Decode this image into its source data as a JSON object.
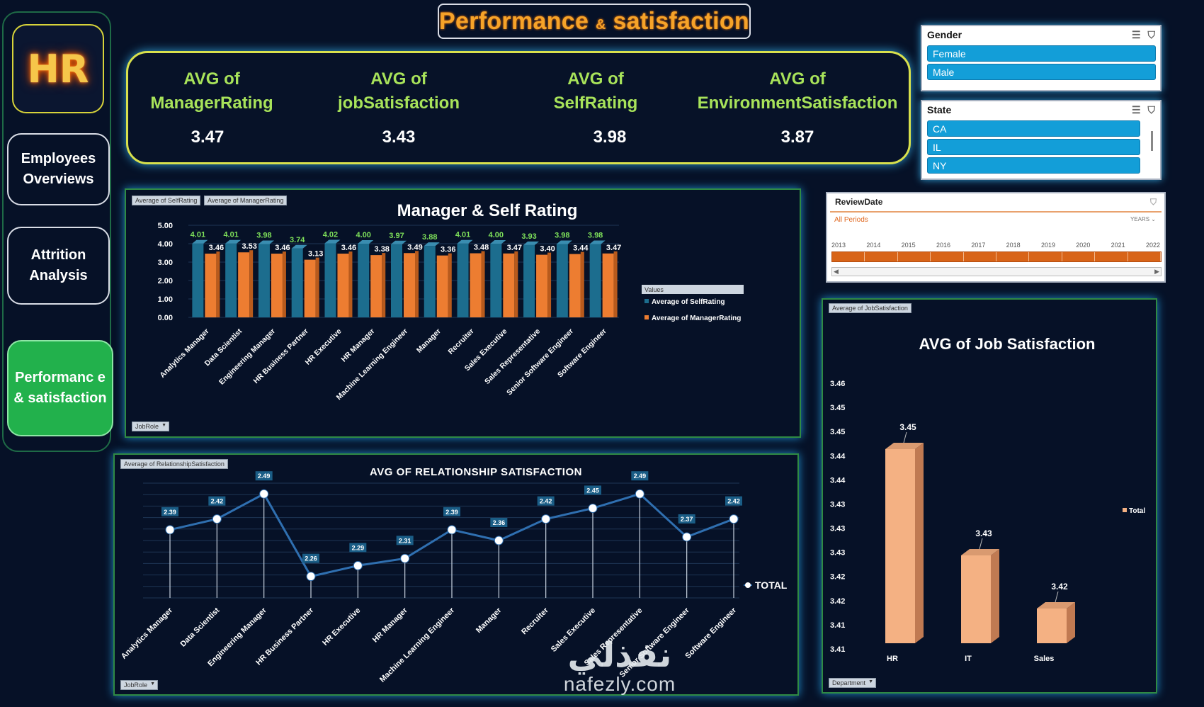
{
  "sidebar": {
    "logo": "HR",
    "nav": [
      "Employees Overviews",
      "Attrition Analysis",
      "Performanc e & satisfaction"
    ]
  },
  "title": {
    "main": "Performance",
    "amp": "&",
    "rest": "satisfaction"
  },
  "kpis": [
    {
      "l1": "AVG of",
      "l2": "ManagerRating",
      "value": "3.47"
    },
    {
      "l1": "AVG of",
      "l2": "jobSatisfaction",
      "value": "3.43"
    },
    {
      "l1": "AVG of",
      "l2": "SelfRating",
      "value": "3.98"
    },
    {
      "l1": "AVG of",
      "l2": "EnvironmentSatisfaction",
      "value": "3.87"
    }
  ],
  "slicers": {
    "gender": {
      "title": "Gender",
      "items": [
        "Female",
        "Male"
      ]
    },
    "state": {
      "title": "State",
      "items": [
        "CA",
        "IL",
        "NY"
      ]
    }
  },
  "timeline": {
    "title": "ReviewDate",
    "period": "All Periods",
    "level": "YEARS",
    "years": [
      "2013",
      "2014",
      "2015",
      "2016",
      "2017",
      "2018",
      "2019",
      "2020",
      "2021",
      "2022"
    ]
  },
  "colors": {
    "self": "#1c6d8e",
    "manager": "#ed7d31",
    "job": "#f4b183",
    "line": "#2f6fb0"
  },
  "chart_data": [
    {
      "type": "bar",
      "title": "Manager &  Self Rating",
      "field_chips": [
        "Average of SelfRating",
        "Average of ManagerRating"
      ],
      "axis_chip": "JobRole",
      "legend_title": "Values",
      "legend_position": "right",
      "categories": [
        "Analytics Manager",
        "Data Scientist",
        "Engineering Manager",
        "HR Business Partner",
        "HR Executive",
        "HR Manager",
        "Machine Learning Engineer",
        "Manager",
        "Recruiter",
        "Sales Executive",
        "Sales Representative",
        "Senior Software Engineer",
        "Software Engineer"
      ],
      "series": [
        {
          "name": "Average of SelfRating",
          "values": [
            4.01,
            4.01,
            3.98,
            3.74,
            4.02,
            4.0,
            3.97,
            3.88,
            4.01,
            4.0,
            3.93,
            3.98,
            3.98
          ]
        },
        {
          "name": "Average of ManagerRating",
          "values": [
            3.46,
            3.53,
            3.46,
            3.13,
            3.46,
            3.38,
            3.49,
            3.36,
            3.48,
            3.47,
            3.4,
            3.44,
            3.47
          ]
        }
      ],
      "yticks": [
        "0.00",
        "1.00",
        "2.00",
        "3.00",
        "4.00",
        "5.00"
      ],
      "ylim": [
        0,
        5
      ]
    },
    {
      "type": "line",
      "title": "AVG OF RELATIONSHIP SATISFACTION",
      "field_chip": "Average of RelationshipSatisfaction",
      "axis_chip": "JobRole",
      "categories": [
        "Analytics Manager",
        "Data Scientist",
        "Engineering Manager",
        "HR Business Partner",
        "HR Executive",
        "HR Manager",
        "Machine Learning Engineer",
        "Manager",
        "Recruiter",
        "Sales Executive",
        "Sales Representative",
        "Senior Software Engineer",
        "Software Engineer"
      ],
      "series": [
        {
          "name": "TOTAL",
          "values": [
            2.39,
            2.42,
            2.49,
            2.26,
            2.29,
            2.31,
            2.39,
            2.36,
            2.42,
            2.45,
            2.49,
            2.37,
            2.42
          ],
          "labels": [
            "2.39",
            "2.42",
            "2.49",
            "2.26",
            "2.29",
            "2.31",
            "2.39",
            "2.36",
            "2.42",
            "2.45",
            "2.49",
            "2.37",
            "2.42"
          ]
        }
      ],
      "legend_position": "right"
    },
    {
      "type": "bar",
      "title": "AVG  of  Job Satisfaction",
      "field_chip": "Average of JobSatisfaction",
      "axis_chip": "Department",
      "categories": [
        "HR",
        "IT",
        "Sales"
      ],
      "series": [
        {
          "name": "Total",
          "values": [
            3.45,
            3.43,
            3.42
          ]
        }
      ],
      "yticks": [
        "3.46",
        "3.45",
        "3.45",
        "3.44",
        "3.44",
        "3.43",
        "3.43",
        "3.43",
        "3.42",
        "3.42",
        "3.41",
        "3.41"
      ],
      "ylim": [
        3.41,
        3.46
      ],
      "legend_position": "right"
    }
  ],
  "watermark": {
    "arabic": "نفذلي",
    "latin": "nafezly.com"
  }
}
